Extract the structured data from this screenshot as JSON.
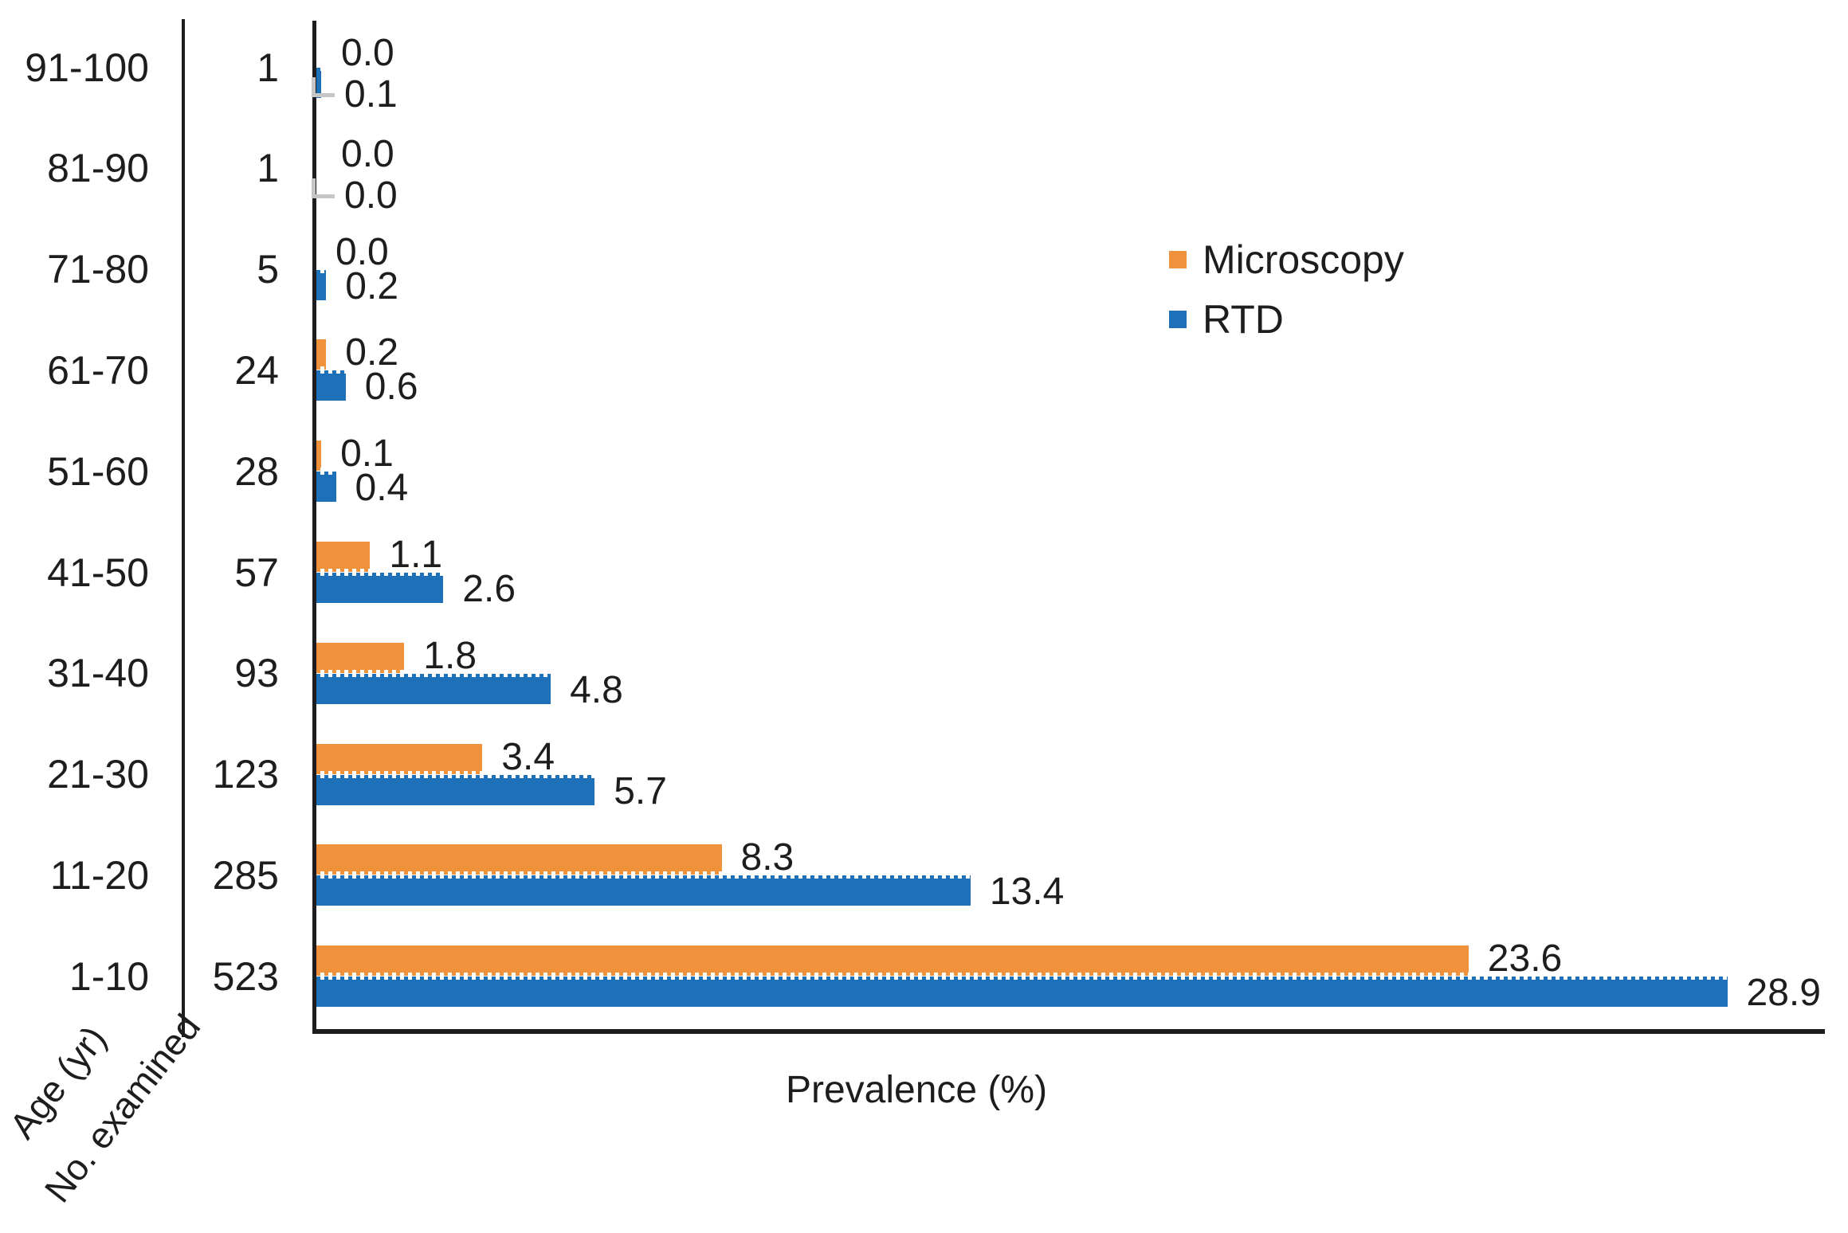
{
  "chart_data": {
    "type": "bar",
    "orientation": "horizontal",
    "title": "",
    "xlabel": "Prevalence (%)",
    "age_axis_label": "Age (yr)",
    "count_axis_label": "No. examined",
    "categories": [
      "91-100",
      "81-90",
      "71-80",
      "61-70",
      "51-60",
      "41-50",
      "31-40",
      "21-30",
      "11-20",
      "1-10"
    ],
    "no_examined": [
      1,
      1,
      5,
      24,
      28,
      57,
      93,
      123,
      285,
      523
    ],
    "series": [
      {
        "name": "Microscopy",
        "color": "#F0923C",
        "values": [
          0.0,
          0.0,
          0.0,
          0.2,
          0.1,
          1.1,
          1.8,
          3.4,
          8.3,
          23.6
        ]
      },
      {
        "name": "RTD",
        "color": "#1E70B8",
        "values": [
          0.1,
          0.0,
          0.2,
          0.6,
          0.4,
          2.6,
          4.8,
          5.7,
          13.4,
          28.9
        ]
      }
    ],
    "xlim": [
      0,
      30.9
    ],
    "grid": false,
    "legend_position": "center-right",
    "value_labels": "outside bar end, one decimal",
    "leader_line_rows": [
      "91-100",
      "81-90"
    ],
    "leader_line_color": "#C6C6C6",
    "text_color": "#1d1d1f"
  }
}
